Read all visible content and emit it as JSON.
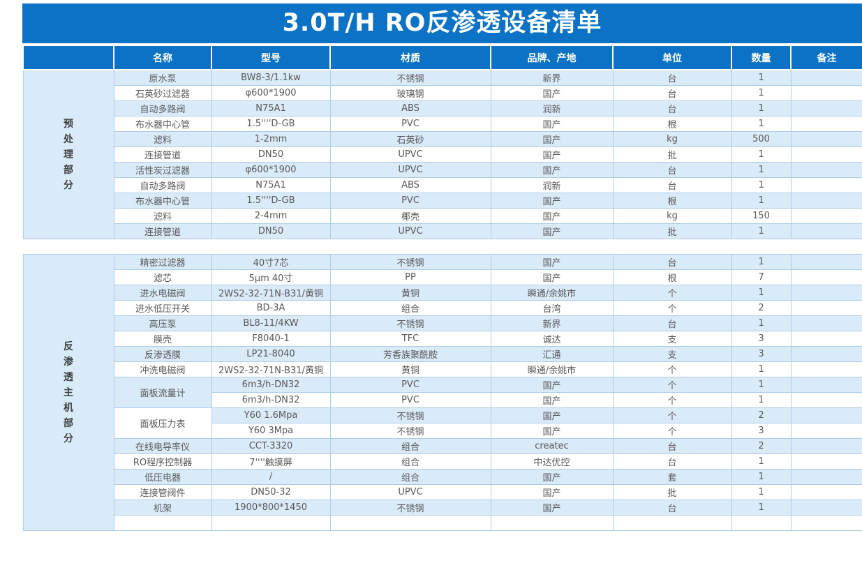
{
  "title": "3.0T/H RO反渗透设备清单",
  "columns": [
    "名称",
    "型号",
    "材质",
    "品牌、产地",
    "单位",
    "数量",
    "备注"
  ],
  "colors": {
    "header_blue": "#0c72c6",
    "row_blue": "#d9eaf9",
    "row_white": "#ffffff",
    "border_blue": "#aecdec",
    "cell_text": "#595959",
    "title_text": "#ffffff"
  },
  "sections": [
    {
      "label": "预处理部分",
      "rows": [
        {
          "name": "原水泵",
          "model": "BW8-3/1.1kw",
          "material": "不锈钢",
          "brand": "新界",
          "unit": "台",
          "qty": "1",
          "note": ""
        },
        {
          "name": "石英砂过滤器",
          "model": "φ600*1900",
          "material": "玻璃钢",
          "brand": "国产",
          "unit": "台",
          "qty": "1",
          "note": ""
        },
        {
          "name": "自动多路阀",
          "model": "N75A1",
          "material": "ABS",
          "brand": "润新",
          "unit": "台",
          "qty": "1",
          "note": ""
        },
        {
          "name": "布水器中心管",
          "model": "1.5''''D-GB",
          "material": "PVC",
          "brand": "国产",
          "unit": "根",
          "qty": "1",
          "note": ""
        },
        {
          "name": "滤料",
          "model": "1-2mm",
          "material": "石英砂",
          "brand": "国产",
          "unit": "kg",
          "qty": "500",
          "note": ""
        },
        {
          "name": "连接管道",
          "model": "DN50",
          "material": "UPVC",
          "brand": "国产",
          "unit": "批",
          "qty": "1",
          "note": ""
        },
        {
          "name": "活性炭过滤器",
          "model": "φ600*1900",
          "material": "UPVC",
          "brand": "国产",
          "unit": "台",
          "qty": "1",
          "note": ""
        },
        {
          "name": "自动多路阀",
          "model": "N75A1",
          "material": "ABS",
          "brand": "润新",
          "unit": "台",
          "qty": "1",
          "note": ""
        },
        {
          "name": "布水器中心管",
          "model": "1.5''''D-GB",
          "material": "PVC",
          "brand": "国产",
          "unit": "根",
          "qty": "1",
          "note": ""
        },
        {
          "name": "滤料",
          "model": "2-4mm",
          "material": "椰壳",
          "brand": "国产",
          "unit": "kg",
          "qty": "150",
          "note": ""
        },
        {
          "name": "连接管道",
          "model": "DN50",
          "material": "UPVC",
          "brand": "国产",
          "unit": "批",
          "qty": "1",
          "note": ""
        }
      ]
    },
    {
      "label": "反渗透主机部分",
      "rows": [
        {
          "name": "精密过滤器",
          "model": "40寸7芯",
          "material": "不锈钢",
          "brand": "国产",
          "unit": "台",
          "qty": "1",
          "note": ""
        },
        {
          "name": "滤芯",
          "model": "5μm 40寸",
          "material": "PP",
          "brand": "国产",
          "unit": "根",
          "qty": "7",
          "note": ""
        },
        {
          "name": "进水电磁阀",
          "model": "2WS2-32-71N-B31/黄铜",
          "material": "黄铜",
          "brand": "瞬通/余姚市",
          "unit": "个",
          "qty": "1",
          "note": ""
        },
        {
          "name": "进水低压开关",
          "model": "BD-3A",
          "material": "组合",
          "brand": "台湾",
          "unit": "个",
          "qty": "2",
          "note": ""
        },
        {
          "name": "高压泵",
          "model": "BL8-11/4KW",
          "material": "不锈钢",
          "brand": "新界",
          "unit": "台",
          "qty": "1",
          "note": ""
        },
        {
          "name": "膜壳",
          "model": "F8040-1",
          "material": "TFC",
          "brand": "诚达",
          "unit": "支",
          "qty": "3",
          "note": ""
        },
        {
          "name": "反渗透膜",
          "model": "LP21-8040",
          "material": "芳香族聚酰胺",
          "brand": "汇通",
          "unit": "支",
          "qty": "3",
          "note": ""
        },
        {
          "name": "冲洗电磁阀",
          "model": "2WS2-32-71N-B31/黄铜",
          "material": "黄铜",
          "brand": "瞬通/余姚市",
          "unit": "个",
          "qty": "1",
          "note": ""
        },
        {
          "name": "面板流量计",
          "name_rowspan": 2,
          "name_shade": "blue",
          "model": "6m3/h-DN32",
          "material": "PVC",
          "brand": "国产",
          "unit": "个",
          "qty": "1",
          "note": ""
        },
        {
          "name": null,
          "model": "6m3/h-DN32",
          "material": "PVC",
          "brand": "国产",
          "unit": "个",
          "qty": "1",
          "note": ""
        },
        {
          "name": "面板压力表",
          "name_rowspan": 2,
          "name_shade": "white",
          "model": "Y60 1.6Mpa",
          "material": "不锈钢",
          "brand": "国产",
          "unit": "个",
          "qty": "2",
          "note": ""
        },
        {
          "name": null,
          "model": "Y60 3Mpa",
          "material": "不锈钢",
          "brand": "国产",
          "unit": "个",
          "qty": "3",
          "note": ""
        },
        {
          "name": "在线电导率仪",
          "model": "CCT-3320",
          "material": "组合",
          "brand": "createc",
          "unit": "台",
          "qty": "2",
          "note": ""
        },
        {
          "name": "RO程序控制器",
          "model": "7''''触摸屏",
          "material": "组合",
          "brand": "中达优控",
          "unit": "台",
          "qty": "1",
          "note": ""
        },
        {
          "name": "低压电器",
          "model": "/",
          "material": "组合",
          "brand": "国产",
          "unit": "套",
          "qty": "1",
          "note": ""
        },
        {
          "name": "连接管阀件",
          "model": "DN50-32",
          "material": "UPVC",
          "brand": "国产",
          "unit": "批",
          "qty": "1",
          "note": ""
        },
        {
          "name": "机架",
          "model": "1900*800*1450",
          "material": "不锈钢",
          "brand": "国产",
          "unit": "台",
          "qty": "1",
          "note": ""
        },
        {
          "name": "",
          "model": "",
          "material": "",
          "brand": "",
          "unit": "",
          "qty": "",
          "note": ""
        }
      ]
    }
  ]
}
